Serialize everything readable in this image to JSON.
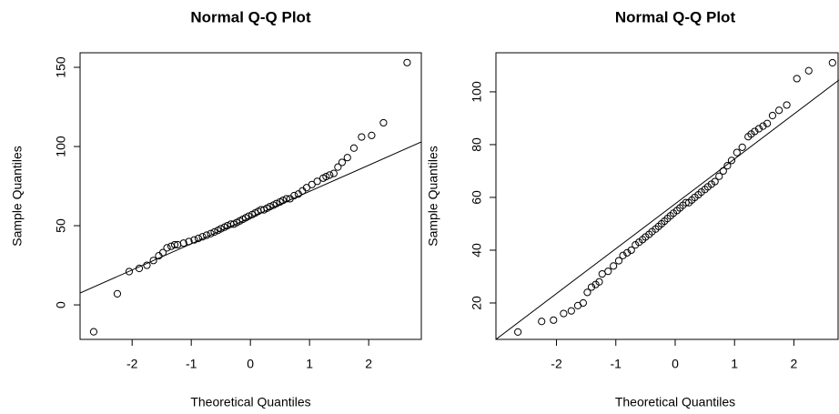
{
  "chart_data": [
    {
      "type": "scatter",
      "title": "Normal Q-Q Plot",
      "xlabel": "Theoretical Quantiles",
      "ylabel": "Sample Quantiles",
      "xlim": [
        -2.88,
        2.89
      ],
      "ylim": [
        -21.8,
        159.2
      ],
      "xticks": [
        -2,
        -1,
        0,
        1,
        2
      ],
      "yticks": [
        0,
        50,
        100,
        150
      ],
      "x": [
        -2.65,
        -2.25,
        -2.05,
        -1.88,
        -1.75,
        -1.64,
        -1.55,
        -1.48,
        -1.41,
        -1.34,
        -1.28,
        -1.23,
        -1.13,
        -1.04,
        -0.95,
        -0.88,
        -0.81,
        -0.74,
        -0.67,
        -0.61,
        -0.55,
        -0.5,
        -0.44,
        -0.39,
        -0.33,
        -0.28,
        -0.23,
        -0.18,
        -0.13,
        -0.08,
        -0.03,
        0.03,
        0.08,
        0.13,
        0.18,
        0.23,
        0.28,
        0.33,
        0.39,
        0.44,
        0.5,
        0.55,
        0.61,
        0.67,
        0.74,
        0.81,
        0.88,
        0.95,
        1.04,
        1.13,
        1.23,
        1.28,
        1.34,
        1.41,
        1.48,
        1.55,
        1.64,
        1.75,
        1.88,
        2.05,
        2.25,
        2.65
      ],
      "values": [
        -17,
        7,
        21,
        23,
        25,
        28,
        31,
        33,
        36,
        37,
        38,
        38,
        39,
        40,
        41,
        42,
        43,
        44,
        45,
        46,
        47,
        48,
        49,
        50,
        51,
        51,
        52,
        53,
        54,
        55,
        56,
        57,
        58,
        59,
        60,
        60,
        61,
        62,
        63,
        64,
        65,
        66,
        67,
        67,
        69,
        70,
        72,
        74,
        76,
        78,
        80,
        81,
        82,
        83,
        87,
        90,
        93,
        99,
        106,
        107,
        115,
        153
      ],
      "qqline": {
        "x": [
          -2.88,
          2.89
        ],
        "y": [
          7.5,
          102.9
        ]
      }
    },
    {
      "type": "scatter",
      "title": "Normal Q-Q Plot",
      "xlabel": "Theoretical Quantiles",
      "ylabel": "Sample Quantiles",
      "xlim": [
        -3.02,
        2.76
      ],
      "ylim": [
        6.2,
        114.8
      ],
      "xticks": [
        -2,
        -1,
        0,
        1,
        2
      ],
      "yticks": [
        20,
        40,
        60,
        80,
        100
      ],
      "x": [
        -2.65,
        -2.25,
        -2.05,
        -1.88,
        -1.75,
        -1.64,
        -1.55,
        -1.48,
        -1.41,
        -1.34,
        -1.28,
        -1.23,
        -1.13,
        -1.04,
        -0.95,
        -0.88,
        -0.81,
        -0.74,
        -0.67,
        -0.61,
        -0.55,
        -0.5,
        -0.44,
        -0.39,
        -0.33,
        -0.28,
        -0.23,
        -0.18,
        -0.13,
        -0.08,
        -0.03,
        0.03,
        0.08,
        0.13,
        0.18,
        0.23,
        0.28,
        0.33,
        0.39,
        0.44,
        0.5,
        0.55,
        0.61,
        0.67,
        0.74,
        0.81,
        0.88,
        0.95,
        1.04,
        1.13,
        1.23,
        1.28,
        1.34,
        1.41,
        1.48,
        1.55,
        1.64,
        1.75,
        1.88,
        2.05,
        2.25,
        2.65
      ],
      "values": [
        9,
        13,
        13.5,
        16,
        17,
        19,
        20,
        24,
        26,
        27,
        28,
        31,
        32,
        34,
        36,
        38,
        39,
        40,
        42,
        43,
        44,
        45,
        46,
        47,
        48,
        49,
        50,
        51,
        52,
        53,
        54,
        55,
        56,
        57,
        58,
        58,
        59,
        60,
        61,
        62,
        63,
        64,
        65,
        66,
        68,
        70,
        72,
        74,
        77,
        79,
        83,
        84,
        85,
        86,
        87,
        88,
        91,
        93,
        95,
        105,
        108,
        111
      ],
      "qqline": {
        "x": [
          -3.02,
          2.76
        ],
        "y": [
          6.2,
          104.5
        ]
      }
    }
  ]
}
